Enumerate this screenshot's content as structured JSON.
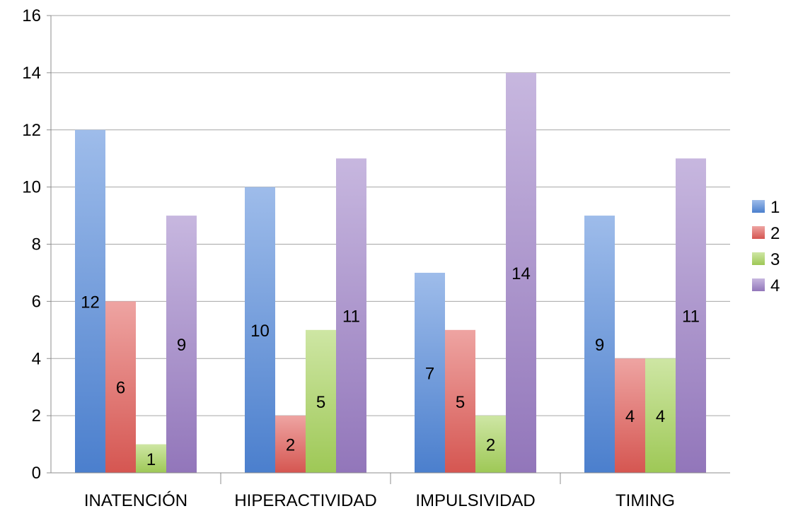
{
  "chart_data": {
    "type": "bar",
    "categories": [
      "INATENCIÓN",
      "HIPERACTIVIDAD",
      "IMPULSIVIDAD",
      "TIMING"
    ],
    "series": [
      {
        "name": "1",
        "values": [
          12,
          10,
          7,
          9
        ],
        "color": "#4f86d8"
      },
      {
        "name": "2",
        "values": [
          6,
          2,
          5,
          4
        ],
        "color": "#e05a55"
      },
      {
        "name": "3",
        "values": [
          1,
          5,
          2,
          4
        ],
        "color": "#a6d25a"
      },
      {
        "name": "4",
        "values": [
          9,
          11,
          14,
          11
        ],
        "color": "#9a7cc4"
      }
    ],
    "ylim": [
      0,
      16
    ],
    "yticks": [
      "0",
      "2",
      "4",
      "6",
      "8",
      "10",
      "12",
      "14",
      "16"
    ],
    "grid": true,
    "legend": "right",
    "data_labels": true
  }
}
